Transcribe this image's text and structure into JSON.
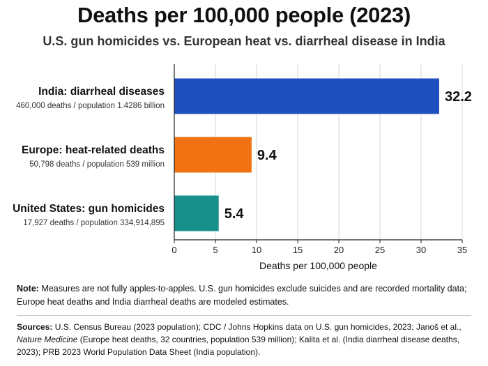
{
  "title": "Deaths per 100,000 people (2023)",
  "subtitle": "U.S. gun homicides vs. European heat vs. diarrheal disease in India",
  "chart_data": {
    "type": "bar",
    "orientation": "horizontal",
    "categories": [
      "India: diarrheal diseases",
      "Europe: heat-related deaths",
      "United States: gun homicides"
    ],
    "category_subtitles": [
      "460,000 deaths / population 1.4286 billion",
      "50,798 deaths / population 539 million",
      "17,927 deaths / population 334,914,895"
    ],
    "values": [
      32.2,
      9.4,
      5.4
    ],
    "value_labels": [
      "32.2",
      "9.4",
      "5.4"
    ],
    "colors": [
      "#1f4fbf",
      "#f07212",
      "#17908c"
    ],
    "xlabel": "Deaths per 100,000 people",
    "xlim": [
      0,
      35
    ],
    "xticks": [
      0,
      5,
      10,
      15,
      20,
      25,
      30,
      35
    ],
    "grid": "vertical",
    "legend": "none"
  },
  "note": {
    "lead": "Note:",
    "text": " Measures are not fully apples-to-apples. U.S. gun homicides exclude suicides and are recorded mortality data; Europe heat deaths and India diarrheal deaths are modeled estimates."
  },
  "sources": {
    "lead": "Sources:",
    "part1": " U.S. Census Bureau (2023 population); CDC / Johns Hopkins data on U.S. gun homicides, 2023; Janoš et al., ",
    "journal": "Nature Medicine",
    "part2": " (Europe heat deaths, 32 countries, population 539 million); Kalita et al. (India diarrheal disease deaths, 2023); PRB 2023 World Population Data Sheet (India population)."
  }
}
